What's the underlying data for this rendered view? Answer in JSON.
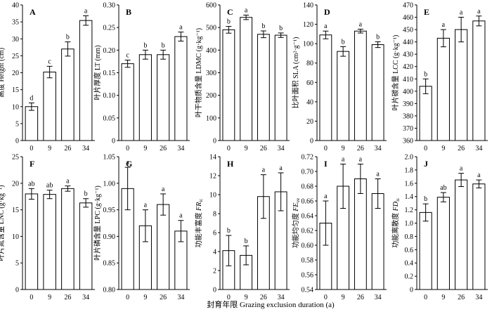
{
  "figure": {
    "xlabel": "封育年限 Grazing exclusion duration (a)"
  },
  "chart_data": [
    {
      "type": "bar",
      "panel": "A",
      "ylabel": "高度 Height (cm)",
      "ylim": [
        0,
        40
      ],
      "yticks": [
        "0",
        "5",
        "10",
        "15",
        "20",
        "25",
        "30",
        "35",
        "40"
      ],
      "categories": [
        "0",
        "9",
        "26",
        "34"
      ],
      "values": [
        10,
        20.2,
        27,
        35.4
      ],
      "errors": [
        1.1,
        1.7,
        2.1,
        1.4
      ],
      "letters": [
        "d",
        "c",
        "b",
        "a"
      ]
    },
    {
      "type": "bar",
      "panel": "B",
      "ylabel": "叶片厚度 LT (mm)",
      "ylim": [
        0,
        0.3
      ],
      "yticks": [
        "0",
        "0.05",
        "0.10",
        "0.15",
        "0.20",
        "0.25",
        "0.30"
      ],
      "categories": [
        "0",
        "9",
        "26",
        "34"
      ],
      "values": [
        0.17,
        0.19,
        0.19,
        0.23
      ],
      "errors": [
        0.008,
        0.01,
        0.01,
        0.01
      ],
      "letters": [
        "c",
        "b",
        "b",
        "a"
      ]
    },
    {
      "type": "bar",
      "panel": "C",
      "ylabel": "叶干物质含量 LDMC (g·kg⁻¹)",
      "ylim": [
        0,
        600
      ],
      "yticks": [
        "0",
        "100",
        "200",
        "300",
        "400",
        "500",
        "600"
      ],
      "categories": [
        "0",
        "9",
        "26",
        "34"
      ],
      "values": [
        490,
        545,
        470,
        466
      ],
      "errors": [
        15,
        10,
        15,
        10
      ],
      "letters": [
        "b",
        "a",
        "b",
        "b"
      ]
    },
    {
      "type": "bar",
      "panel": "D",
      "ylabel": "比叶面积 SLA (cm²·g⁻¹)",
      "ylim": [
        0,
        140
      ],
      "yticks": [
        "0",
        "20",
        "40",
        "60",
        "80",
        "100",
        "120",
        "140"
      ],
      "categories": [
        "0",
        "9",
        "26",
        "34"
      ],
      "values": [
        109,
        92,
        113,
        99
      ],
      "errors": [
        4,
        5,
        2,
        3
      ],
      "letters": [
        "a",
        "b",
        "a",
        "b"
      ]
    },
    {
      "type": "bar",
      "panel": "E",
      "ylabel": "叶片碳含量 LCC (g·kg⁻¹)",
      "ylim": [
        360,
        470
      ],
      "yticks": [
        "360",
        "370",
        "380",
        "390",
        "400",
        "410",
        "420",
        "430",
        "440",
        "450",
        "460",
        "470"
      ],
      "categories": [
        "0",
        "9",
        "26",
        "34"
      ],
      "values": [
        404,
        443,
        450,
        457
      ],
      "errors": [
        6,
        7,
        10,
        4
      ],
      "letters": [
        "b",
        "a",
        "a",
        "a"
      ]
    },
    {
      "type": "bar",
      "panel": "F",
      "ylabel": "叶片氮含量 LNC (g·kg⁻¹)",
      "ylim": [
        0,
        25
      ],
      "yticks": [
        "0",
        "5",
        "10",
        "15",
        "20",
        "25"
      ],
      "categories": [
        "0",
        "9",
        "26",
        "34"
      ],
      "values": [
        18,
        17.9,
        19,
        16.3
      ],
      "errors": [
        1.0,
        0.8,
        0.5,
        0.8
      ],
      "letters": [
        "ab",
        "ab",
        "a",
        "b"
      ]
    },
    {
      "type": "bar",
      "panel": "G",
      "ylabel": "叶片磷含量 LPC (g·kg⁻¹)",
      "ylim": [
        0.8,
        1.05
      ],
      "yticks": [
        "0.80",
        "0.85",
        "0.90",
        "0.95",
        "1.00",
        "1.05"
      ],
      "categories": [
        "0",
        "9",
        "26",
        "34"
      ],
      "values": [
        0.99,
        0.92,
        0.96,
        0.91
      ],
      "errors": [
        0.04,
        0.03,
        0.02,
        0.02
      ],
      "letters": [
        "a",
        "a",
        "a",
        "a"
      ]
    },
    {
      "type": "bar",
      "panel": "H",
      "ylabel": "功能丰富度 FRic",
      "ylabel_main": "功能丰富度 ",
      "ylabel_sym": "FR",
      "ylabel_sub": "ic",
      "ylim": [
        0,
        14
      ],
      "yticks": [
        "0",
        "2",
        "4",
        "6",
        "8",
        "10",
        "12",
        "14"
      ],
      "categories": [
        "0",
        "9",
        "26",
        "34"
      ],
      "values": [
        4.1,
        3.6,
        9.8,
        10.3
      ],
      "errors": [
        1.6,
        1.0,
        2.3,
        2.0
      ],
      "letters": [
        "b",
        "b",
        "a",
        "a"
      ]
    },
    {
      "type": "bar",
      "panel": "I",
      "ylabel": "功能均匀度 FEve",
      "ylabel_main": "功能均匀度 ",
      "ylabel_sym": "FE",
      "ylabel_sub": "ve",
      "ylim": [
        0.54,
        0.72
      ],
      "yticks": [
        "0.54",
        "0.56",
        "0.58",
        "0.60",
        "0.62",
        "0.64",
        "0.66",
        "0.68",
        "0.70",
        "0.72"
      ],
      "categories": [
        "0",
        "9",
        "26",
        "34"
      ],
      "values": [
        0.63,
        0.68,
        0.69,
        0.67
      ],
      "errors": [
        0.03,
        0.03,
        0.02,
        0.02
      ],
      "letters": [
        "a",
        "a",
        "a",
        "a"
      ]
    },
    {
      "type": "bar",
      "panel": "J",
      "ylabel": "功能离散度 FDis",
      "ylabel_main": "功能离散度 ",
      "ylabel_sym": "FD",
      "ylabel_sub": "is",
      "ylim": [
        0,
        2.0
      ],
      "yticks": [
        "0",
        "0.2",
        "0.4",
        "0.6",
        "0.8",
        "1.0",
        "1.2",
        "1.4",
        "1.6",
        "1.8",
        "2.0"
      ],
      "categories": [
        "0",
        "9",
        "26",
        "34"
      ],
      "values": [
        1.16,
        1.39,
        1.65,
        1.59
      ],
      "errors": [
        0.13,
        0.07,
        0.1,
        0.06
      ],
      "letters": [
        "b",
        "ab",
        "a",
        "a"
      ]
    }
  ]
}
